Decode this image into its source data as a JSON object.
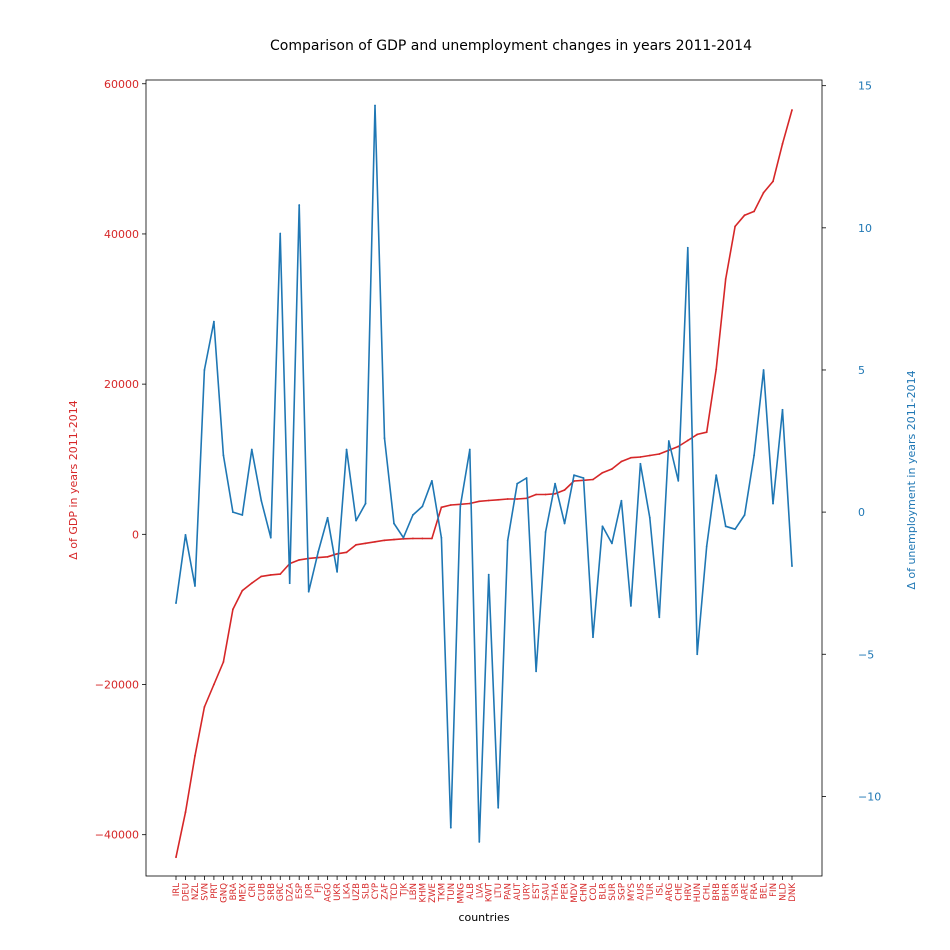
{
  "chart_data": {
    "type": "line",
    "title": "Comparison of GDP and unemployment changes in years 2011-2014",
    "xlabel": "countries",
    "ylabel_left": "Δ of GDP in years 2011-2014",
    "ylabel_right": "Δ of unemployment in years 2011-2014",
    "categories": [
      "IRL",
      "DEU",
      "NZL",
      "SVN",
      "PRT",
      "GNQ",
      "BRA",
      "MEX",
      "CRI",
      "CUB",
      "SRB",
      "GRC",
      "DZA",
      "ESP",
      "JOR",
      "FJI",
      "AGO",
      "UKR",
      "LKA",
      "UZB",
      "SLB",
      "CYP",
      "ZAF",
      "TCD",
      "TJK",
      "LBN",
      "KHM",
      "ZWE",
      "TKM",
      "TUN",
      "MNG",
      "ALB",
      "LVA",
      "KWT",
      "LTU",
      "PAN",
      "AUT",
      "URY",
      "EST",
      "SAU",
      "THA",
      "PER",
      "MDV",
      "CHN",
      "COL",
      "BLR",
      "SUR",
      "SGP",
      "MYS",
      "AUS",
      "TUR",
      "ISL",
      "ARG",
      "CHE",
      "HRV",
      "HUN",
      "CHL",
      "BRB",
      "BHR",
      "ISR",
      "ARE",
      "FRA",
      "BEL",
      "FIN",
      "NLD",
      "DNK"
    ],
    "ylim_left": [
      -45500,
      60500
    ],
    "yticks_left": [
      -40000,
      -20000,
      0,
      20000,
      40000,
      60000
    ],
    "yticklabels_left": [
      "−40000",
      "−20000",
      "0",
      "20000",
      "40000",
      "60000"
    ],
    "ylim_right": [
      -12.8,
      15.2
    ],
    "yticks_right": [
      -10,
      -5,
      0,
      5,
      10,
      15
    ],
    "yticklabels_right": [
      "−10",
      "−5",
      "0",
      "5",
      "10",
      "15"
    ],
    "series": [
      {
        "axis": "left",
        "color": "#d62728",
        "values": [
          -43000,
          -37000,
          -29500,
          -23000,
          -20000,
          -17000,
          -10000,
          -7500,
          -6500,
          -5600,
          -5400,
          -5300,
          -3900,
          -3400,
          -3200,
          -3100,
          -3000,
          -2600,
          -2400,
          -1400,
          -1200,
          -1000,
          -800,
          -700,
          -600,
          -550,
          -550,
          -550,
          3600,
          3900,
          4000,
          4100,
          4400,
          4500,
          4600,
          4700,
          4700,
          4800,
          5300,
          5300,
          5400,
          5900,
          7100,
          7200,
          7300,
          8200,
          8700,
          9700,
          10200,
          10300,
          10500,
          10700,
          11200,
          11700,
          12500,
          13300,
          13600,
          22000,
          34000,
          41000,
          42500,
          43000,
          45500,
          47000,
          52000,
          56500
        ]
      },
      {
        "axis": "right",
        "color": "#1f77b4",
        "values": [
          -3.2,
          -0.8,
          -2.6,
          5.0,
          6.7,
          2.0,
          0.0,
          -0.1,
          2.2,
          0.4,
          -0.9,
          9.8,
          -2.5,
          10.8,
          -2.8,
          -1.4,
          -0.2,
          -2.1,
          2.2,
          -0.3,
          0.3,
          14.3,
          2.6,
          -0.4,
          -0.9,
          -0.1,
          0.2,
          1.1,
          -0.9,
          -11.1,
          0.2,
          2.2,
          -11.6,
          -2.2,
          -10.4,
          -1.0,
          1.0,
          1.2,
          -5.6,
          -0.7,
          1.0,
          -0.4,
          1.3,
          1.2,
          -4.4,
          -0.5,
          -1.1,
          0.4,
          -3.3,
          1.7,
          -0.2,
          -3.7,
          2.5,
          1.1,
          9.3,
          -5.0,
          -1.2,
          1.3,
          -0.5,
          -0.6,
          -0.1,
          2.0,
          5.0,
          0.3,
          3.6,
          -1.9
        ]
      }
    ]
  }
}
